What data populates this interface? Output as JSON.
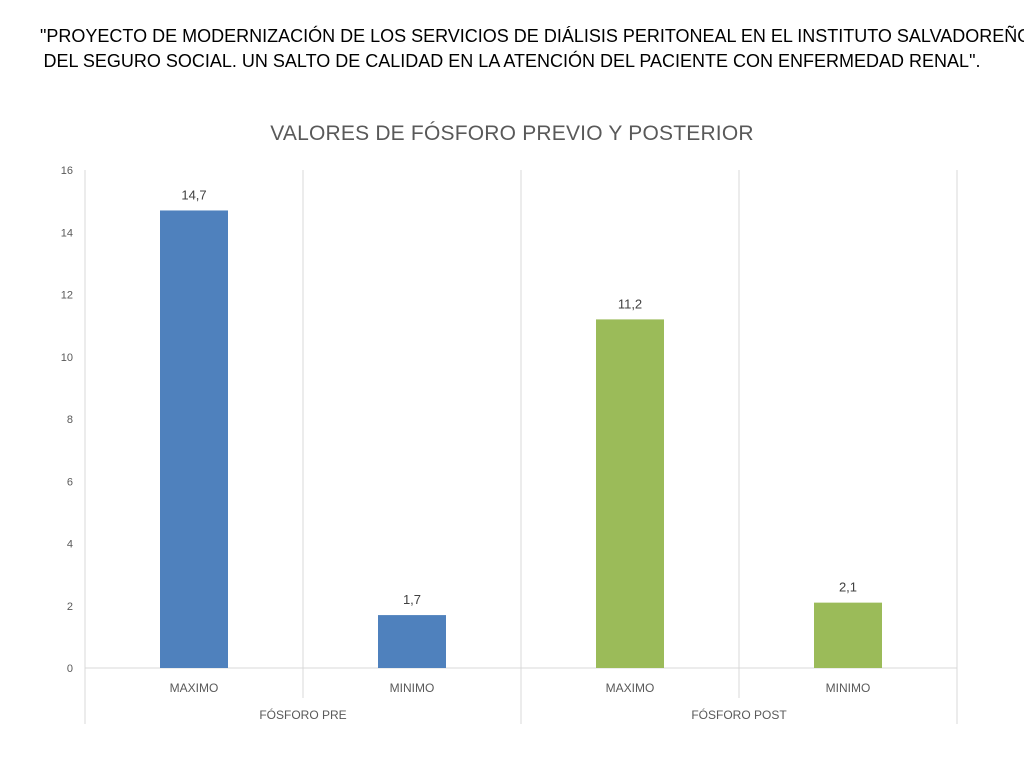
{
  "slide": {
    "heading_line1": "\"PROYECTO DE MODERNIZACIÓN DE LOS SERVICIOS DE DIÁLISIS PERITONEAL EN EL INSTITUTO SALVADOREÑO",
    "heading_line2": "DEL SEGURO SOCIAL. UN SALTO DE CALIDAD EN LA ATENCIÓN DEL PACIENTE CON ENFERMEDAD RENAL\"."
  },
  "colors": {
    "pre": "#4F81BD",
    "post": "#9BBB59",
    "grid": "#D9D9D9",
    "text": "#595959"
  },
  "chart_data": {
    "type": "bar",
    "title": "VALORES DE FÓSFORO PREVIO Y POSTERIOR",
    "xlabel": "",
    "ylabel": "",
    "ylim": [
      0,
      16
    ],
    "y_ticks": [
      0,
      2,
      4,
      6,
      8,
      10,
      12,
      14,
      16
    ],
    "grid": true,
    "legend": "none",
    "groups": [
      {
        "label": "FÓSFORO PRE",
        "categories": [
          "MAXIMO",
          "MINIMO"
        ],
        "values": [
          14.7,
          1.7
        ],
        "value_labels": [
          "14,7",
          "1,7"
        ],
        "color": "#4F81BD"
      },
      {
        "label": "FÓSFORO POST",
        "categories": [
          "MAXIMO",
          "MINIMO"
        ],
        "values": [
          11.2,
          2.1
        ],
        "value_labels": [
          "11,2",
          "2,1"
        ],
        "color": "#9BBB59"
      }
    ]
  }
}
